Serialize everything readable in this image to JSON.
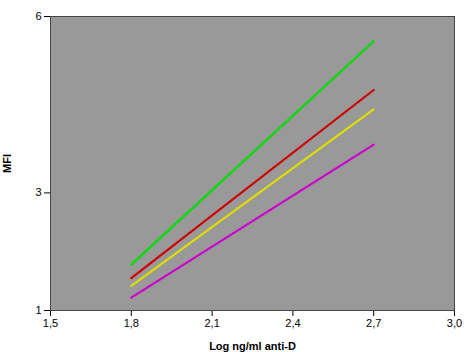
{
  "chart_data": {
    "type": "line",
    "xlabel": "Log ng/ml anti-D",
    "ylabel": "MFI",
    "xlim": [
      1.5,
      3.0
    ],
    "ylim": [
      1,
      6
    ],
    "xticks": [
      {
        "value": 1.5,
        "label": "1,5"
      },
      {
        "value": 1.8,
        "label": "1,8"
      },
      {
        "value": 2.1,
        "label": "2,1"
      },
      {
        "value": 2.4,
        "label": "2,4"
      },
      {
        "value": 2.7,
        "label": "2,7"
      },
      {
        "value": 3.0,
        "label": "3,0"
      }
    ],
    "yticks": [
      1,
      3,
      6
    ],
    "x": [
      1.8,
      2.7
    ],
    "series": [
      {
        "color": "#00dd00",
        "values": [
          1.78,
          5.58
        ]
      },
      {
        "color": "#cc0000",
        "values": [
          1.55,
          4.75
        ]
      },
      {
        "color": "#dddd00",
        "values": [
          1.42,
          4.42
        ]
      },
      {
        "color": "#cc00cc",
        "values": [
          1.22,
          3.82
        ]
      }
    ]
  }
}
